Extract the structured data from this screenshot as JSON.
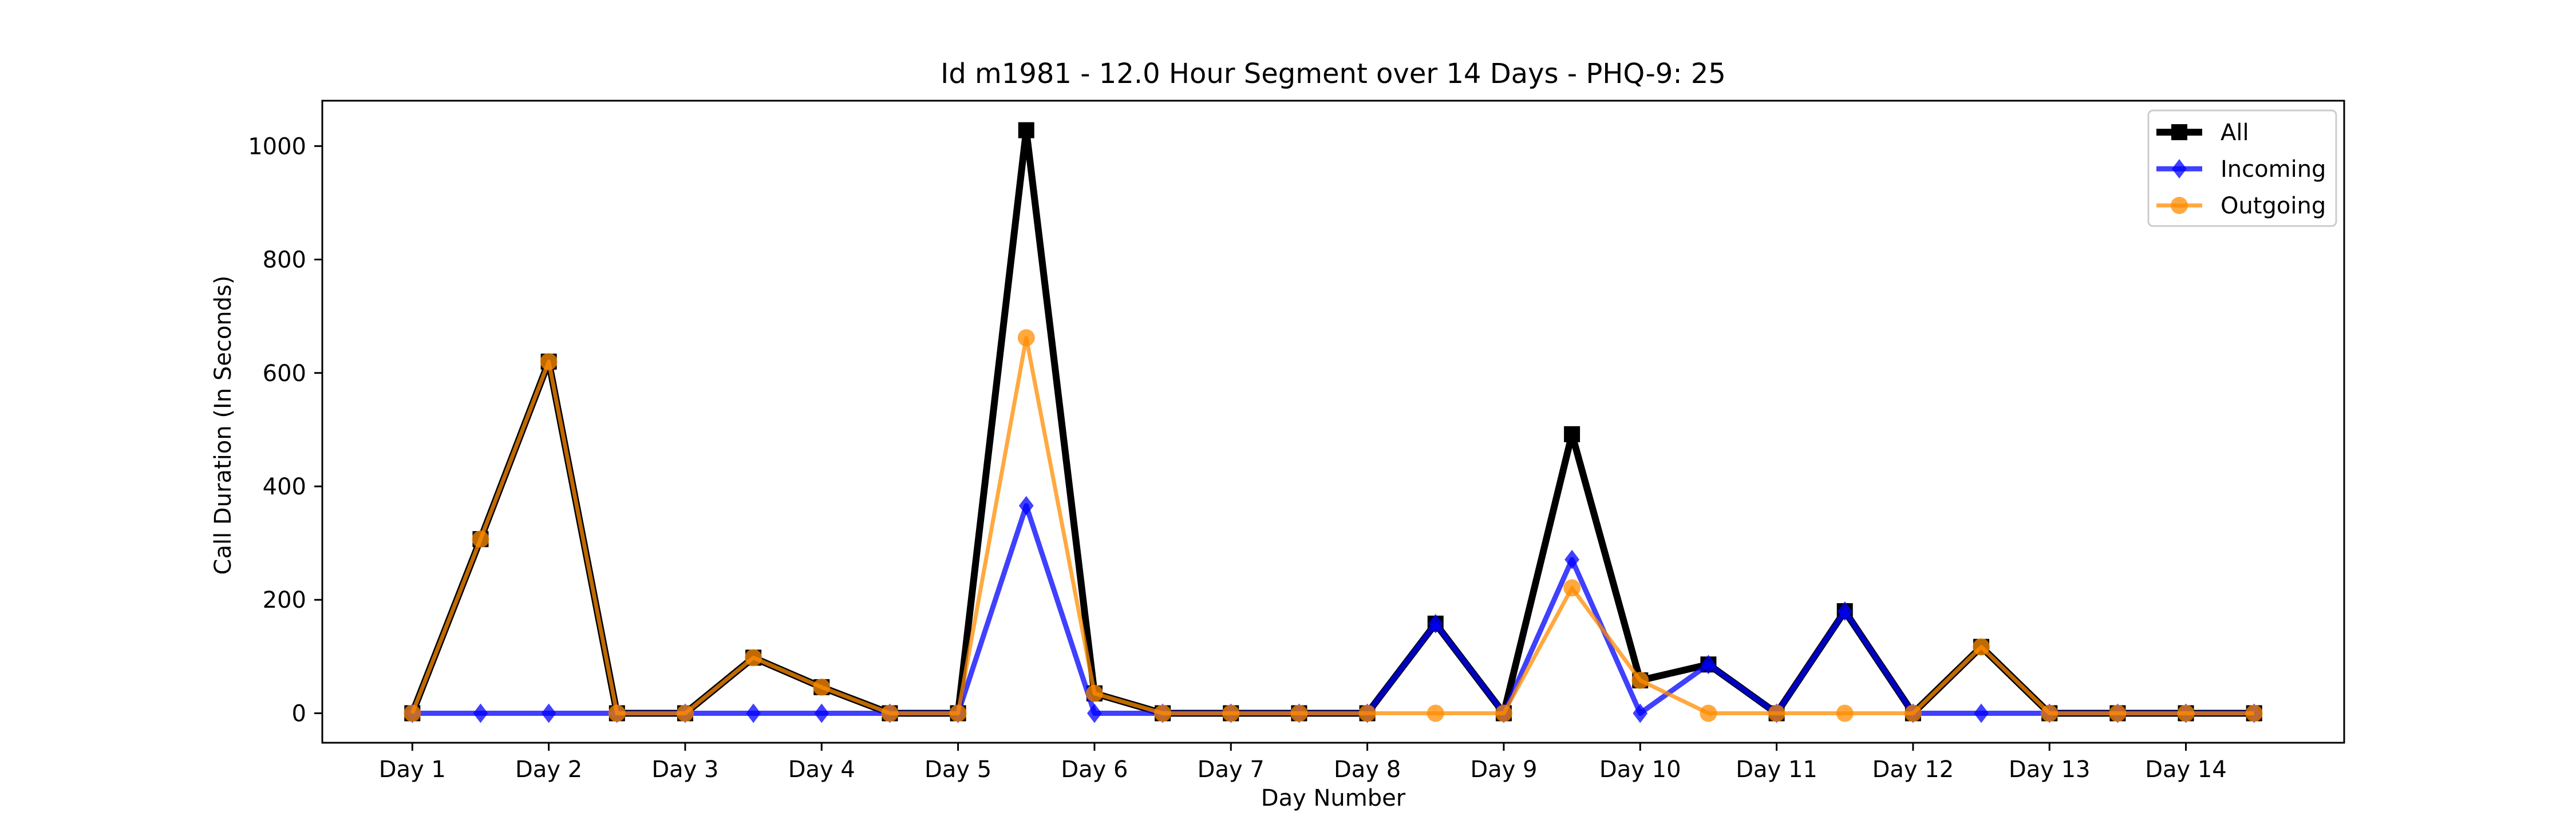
{
  "chart_data": {
    "type": "line",
    "title": "Id m1981 - 12.0 Hour Segment over 14 Days - PHQ-9: 25",
    "xlabel": "Day Number",
    "ylabel": "Call Duration (In Seconds)",
    "x": [
      1,
      1.5,
      2,
      2.5,
      3,
      3.5,
      4,
      4.5,
      5,
      5.5,
      6,
      6.5,
      7,
      7.5,
      8,
      8.5,
      9,
      9.5,
      10,
      10.5,
      11,
      11.5,
      12,
      12.5,
      13,
      13.5,
      14,
      14.5
    ],
    "xticks": [
      {
        "value": 1,
        "label": "Day 1"
      },
      {
        "value": 2,
        "label": "Day 2"
      },
      {
        "value": 3,
        "label": "Day 3"
      },
      {
        "value": 4,
        "label": "Day 4"
      },
      {
        "value": 5,
        "label": "Day 5"
      },
      {
        "value": 6,
        "label": "Day 6"
      },
      {
        "value": 7,
        "label": "Day 7"
      },
      {
        "value": 8,
        "label": "Day 8"
      },
      {
        "value": 9,
        "label": "Day 9"
      },
      {
        "value": 10,
        "label": "Day 10"
      },
      {
        "value": 11,
        "label": "Day 11"
      },
      {
        "value": 12,
        "label": "Day 12"
      },
      {
        "value": 13,
        "label": "Day 13"
      },
      {
        "value": 14,
        "label": "Day 14"
      }
    ],
    "yticks": [
      {
        "value": 0,
        "label": "0"
      },
      {
        "value": 200,
        "label": "200"
      },
      {
        "value": 400,
        "label": "400"
      },
      {
        "value": 600,
        "label": "600"
      },
      {
        "value": 800,
        "label": "800"
      },
      {
        "value": 1000,
        "label": "1000"
      }
    ],
    "xlim": [
      0.34,
      15.16
    ],
    "ylim": [
      -52,
      1080
    ],
    "grid": false,
    "legend_position": "top-right",
    "series": [
      {
        "name": "All",
        "color": "#000000",
        "marker": "square",
        "values": [
          0,
          307,
          620,
          0,
          0,
          98,
          46,
          0,
          0,
          1028,
          35,
          0,
          0,
          0,
          0,
          158,
          0,
          492,
          58,
          86,
          0,
          180,
          0,
          117,
          0,
          0,
          0,
          0
        ]
      },
      {
        "name": "Incoming",
        "color": "#0000ff",
        "marker": "diamond",
        "values": [
          0,
          0,
          0,
          0,
          0,
          0,
          0,
          0,
          0,
          366,
          0,
          0,
          0,
          0,
          0,
          158,
          0,
          271,
          0,
          86,
          0,
          180,
          0,
          0,
          0,
          0,
          0,
          0
        ]
      },
      {
        "name": "Outgoing",
        "color": "#ff8c00",
        "marker": "circle",
        "values": [
          0,
          307,
          620,
          0,
          0,
          98,
          46,
          0,
          0,
          662,
          35,
          0,
          0,
          0,
          0,
          0,
          0,
          221,
          58,
          0,
          0,
          0,
          0,
          117,
          0,
          0,
          0,
          0
        ]
      }
    ]
  }
}
